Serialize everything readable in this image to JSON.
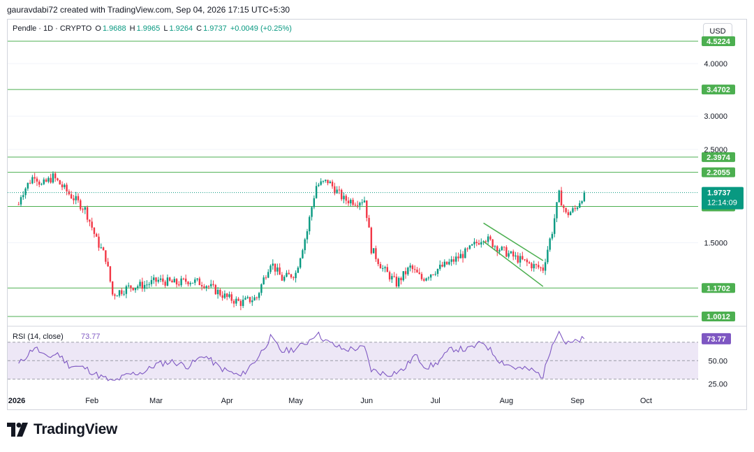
{
  "header": {
    "credit": "gauravdabi72 created with TradingView.com, Sep 04, 2026 17:15 UTC+5:30"
  },
  "legend": {
    "symbol": "Pendle · 1D · CRYPTO",
    "o_label": "O",
    "o": "1.9688",
    "h_label": "H",
    "h": "1.9965",
    "l_label": "L",
    "l": "1.9264",
    "c_label": "C",
    "c": "1.9737",
    "change": "+0.0049 (+0.25%)"
  },
  "currency_button": "USD",
  "branding": {
    "name": "TradingView"
  },
  "colors": {
    "up": "#089981",
    "down": "#f23645",
    "level": "#4caf50",
    "rsi": "#7e57c2",
    "rsi_band": "#ede7f6"
  },
  "chart_data": [
    {
      "type": "candlestick",
      "title": "Pendle · 1D · CRYPTO",
      "y_scale": "log",
      "ylim": [
        0.96,
        4.9
      ],
      "y_ticks": [
        "4.0000",
        "3.0000",
        "2.5000",
        "1.5000"
      ],
      "x_ticks": [
        "2026",
        "Feb",
        "Mar",
        "Apr",
        "May",
        "Jun",
        "Jul",
        "Aug",
        "Sep",
        "Oct"
      ],
      "horizontal_levels": [
        "4.5224",
        "3.4702",
        "2.3974",
        "2.2055",
        "1.8295",
        "1.1702",
        "1.0012"
      ],
      "current_price": {
        "value": "1.9737",
        "countdown": "12:14:09"
      },
      "close_path": [
        [
          "2025-12-31",
          1.85
        ],
        [
          "2026-01-01",
          1.95
        ],
        [
          "2026-01-07",
          2.18
        ],
        [
          "2026-01-10",
          2.05
        ],
        [
          "2026-01-15",
          2.15
        ],
        [
          "2026-01-22",
          1.96
        ],
        [
          "2026-01-29",
          1.8
        ],
        [
          "2026-02-03",
          1.52
        ],
        [
          "2026-02-07",
          1.38
        ],
        [
          "2026-02-10",
          1.13
        ],
        [
          "2026-02-18",
          1.18
        ],
        [
          "2026-02-24",
          1.19
        ],
        [
          "2026-03-02",
          1.22
        ],
        [
          "2026-03-10",
          1.2
        ],
        [
          "2026-03-15",
          1.22
        ],
        [
          "2026-03-22",
          1.2
        ],
        [
          "2026-04-01",
          1.11
        ],
        [
          "2026-04-07",
          1.08
        ],
        [
          "2026-04-14",
          1.11
        ],
        [
          "2026-04-20",
          1.35
        ],
        [
          "2026-04-25",
          1.23
        ],
        [
          "2026-05-01",
          1.27
        ],
        [
          "2026-05-06",
          1.6
        ],
        [
          "2026-05-10",
          2.05
        ],
        [
          "2026-05-15",
          2.1
        ],
        [
          "2026-05-22",
          1.9
        ],
        [
          "2026-05-27",
          1.88
        ],
        [
          "2026-05-31",
          1.9
        ],
        [
          "2026-06-03",
          1.45
        ],
        [
          "2026-06-08",
          1.3
        ],
        [
          "2026-06-14",
          1.2
        ],
        [
          "2026-06-20",
          1.31
        ],
        [
          "2026-06-25",
          1.23
        ],
        [
          "2026-07-01",
          1.29
        ],
        [
          "2026-07-08",
          1.35
        ],
        [
          "2026-07-15",
          1.43
        ],
        [
          "2026-07-22",
          1.55
        ],
        [
          "2026-07-29",
          1.45
        ],
        [
          "2026-08-05",
          1.38
        ],
        [
          "2026-08-13",
          1.32
        ],
        [
          "2026-08-17",
          1.3
        ],
        [
          "2026-08-21",
          1.6
        ],
        [
          "2026-08-24",
          1.95
        ],
        [
          "2026-08-27",
          1.75
        ],
        [
          "2026-08-31",
          1.8
        ],
        [
          "2026-09-04",
          1.97
        ]
      ],
      "channel": {
        "upper": [
          [
            "2026-07-22",
            1.67
          ],
          [
            "2026-08-17",
            1.36
          ]
        ],
        "lower": [
          [
            "2026-07-22",
            1.51
          ],
          [
            "2026-08-17",
            1.18
          ]
        ]
      }
    },
    {
      "type": "line",
      "title": "RSI (14, close)",
      "value": "73.77",
      "ylim": [
        20,
        85
      ],
      "y_ticks": [
        "50.00",
        "25.00"
      ],
      "band": [
        30,
        70
      ],
      "midline": 50,
      "values": [
        [
          "2025-12-31",
          46
        ],
        [
          "2026-01-07",
          65
        ],
        [
          "2026-01-12",
          53
        ],
        [
          "2026-01-17",
          58
        ],
        [
          "2026-01-22",
          45
        ],
        [
          "2026-01-29",
          42
        ],
        [
          "2026-02-03",
          35
        ],
        [
          "2026-02-10",
          27
        ],
        [
          "2026-02-17",
          35
        ],
        [
          "2026-02-24",
          38
        ],
        [
          "2026-03-01",
          46
        ],
        [
          "2026-03-08",
          49
        ],
        [
          "2026-03-15",
          44
        ],
        [
          "2026-03-22",
          56
        ],
        [
          "2026-03-29",
          42
        ],
        [
          "2026-04-07",
          33
        ],
        [
          "2026-04-14",
          52
        ],
        [
          "2026-04-20",
          75
        ],
        [
          "2026-04-25",
          60
        ],
        [
          "2026-05-01",
          63
        ],
        [
          "2026-05-06",
          70
        ],
        [
          "2026-05-10",
          80
        ],
        [
          "2026-05-15",
          70
        ],
        [
          "2026-05-22",
          62
        ],
        [
          "2026-05-31",
          64
        ],
        [
          "2026-06-03",
          40
        ],
        [
          "2026-06-10",
          35
        ],
        [
          "2026-06-17",
          40
        ],
        [
          "2026-06-22",
          56
        ],
        [
          "2026-06-27",
          43
        ],
        [
          "2026-07-01",
          46
        ],
        [
          "2026-07-08",
          63
        ],
        [
          "2026-07-15",
          62
        ],
        [
          "2026-07-22",
          70
        ],
        [
          "2026-07-29",
          50
        ],
        [
          "2026-08-05",
          42
        ],
        [
          "2026-08-12",
          40
        ],
        [
          "2026-08-17",
          33
        ],
        [
          "2026-08-21",
          70
        ],
        [
          "2026-08-24",
          82
        ],
        [
          "2026-08-27",
          68
        ],
        [
          "2026-08-31",
          70
        ],
        [
          "2026-09-04",
          74
        ]
      ]
    }
  ]
}
